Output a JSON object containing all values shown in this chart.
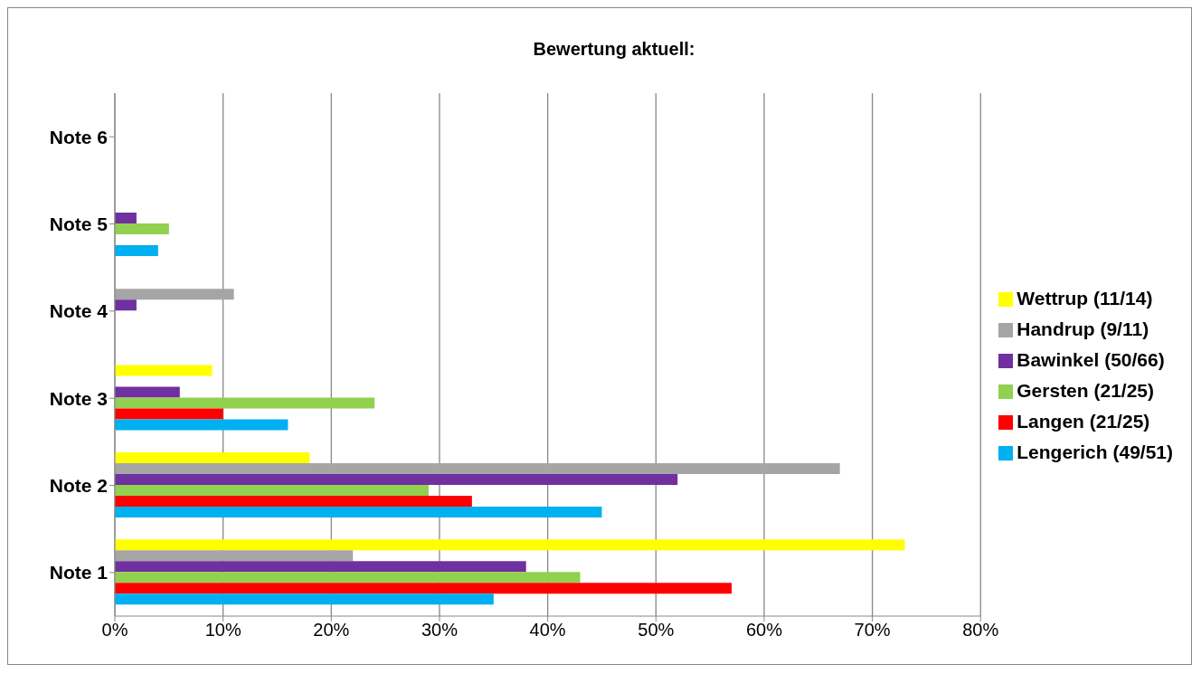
{
  "chart_data": {
    "type": "bar",
    "orientation": "horizontal",
    "title": "Bewertung aktuell:",
    "categories": [
      "Note 6",
      "Note 5",
      "Note 4",
      "Note 3",
      "Note 2",
      "Note 1"
    ],
    "series": [
      {
        "name": "Wettrup (11/14)",
        "color": "#ffff00",
        "values": [
          0,
          0,
          0,
          9,
          18,
          73
        ]
      },
      {
        "name": "Handrup (9/11)",
        "color": "#a5a5a5",
        "values": [
          0,
          0,
          11,
          0,
          67,
          22
        ]
      },
      {
        "name": "Bawinkel (50/66)",
        "color": "#7030a0",
        "values": [
          0,
          2,
          2,
          6,
          52,
          38
        ]
      },
      {
        "name": "Gersten (21/25)",
        "color": "#92d050",
        "values": [
          0,
          5,
          0,
          24,
          29,
          43
        ]
      },
      {
        "name": "Langen (21/25)",
        "color": "#ff0000",
        "values": [
          0,
          0,
          0,
          10,
          33,
          57
        ]
      },
      {
        "name": "Lengerich (49/51)",
        "color": "#00b0f0",
        "values": [
          0,
          4,
          0,
          16,
          45,
          35
        ]
      }
    ],
    "xlim": [
      0,
      80
    ],
    "xticks": [
      {
        "value": 0,
        "label": "0%"
      },
      {
        "value": 10,
        "label": "10%"
      },
      {
        "value": 20,
        "label": "20%"
      },
      {
        "value": 30,
        "label": "30%"
      },
      {
        "value": 40,
        "label": "40%"
      },
      {
        "value": 50,
        "label": "50%"
      },
      {
        "value": 60,
        "label": "60%"
      },
      {
        "value": 70,
        "label": "70%"
      },
      {
        "value": 80,
        "label": "80%"
      }
    ],
    "grid": "x",
    "legend": "right"
  }
}
